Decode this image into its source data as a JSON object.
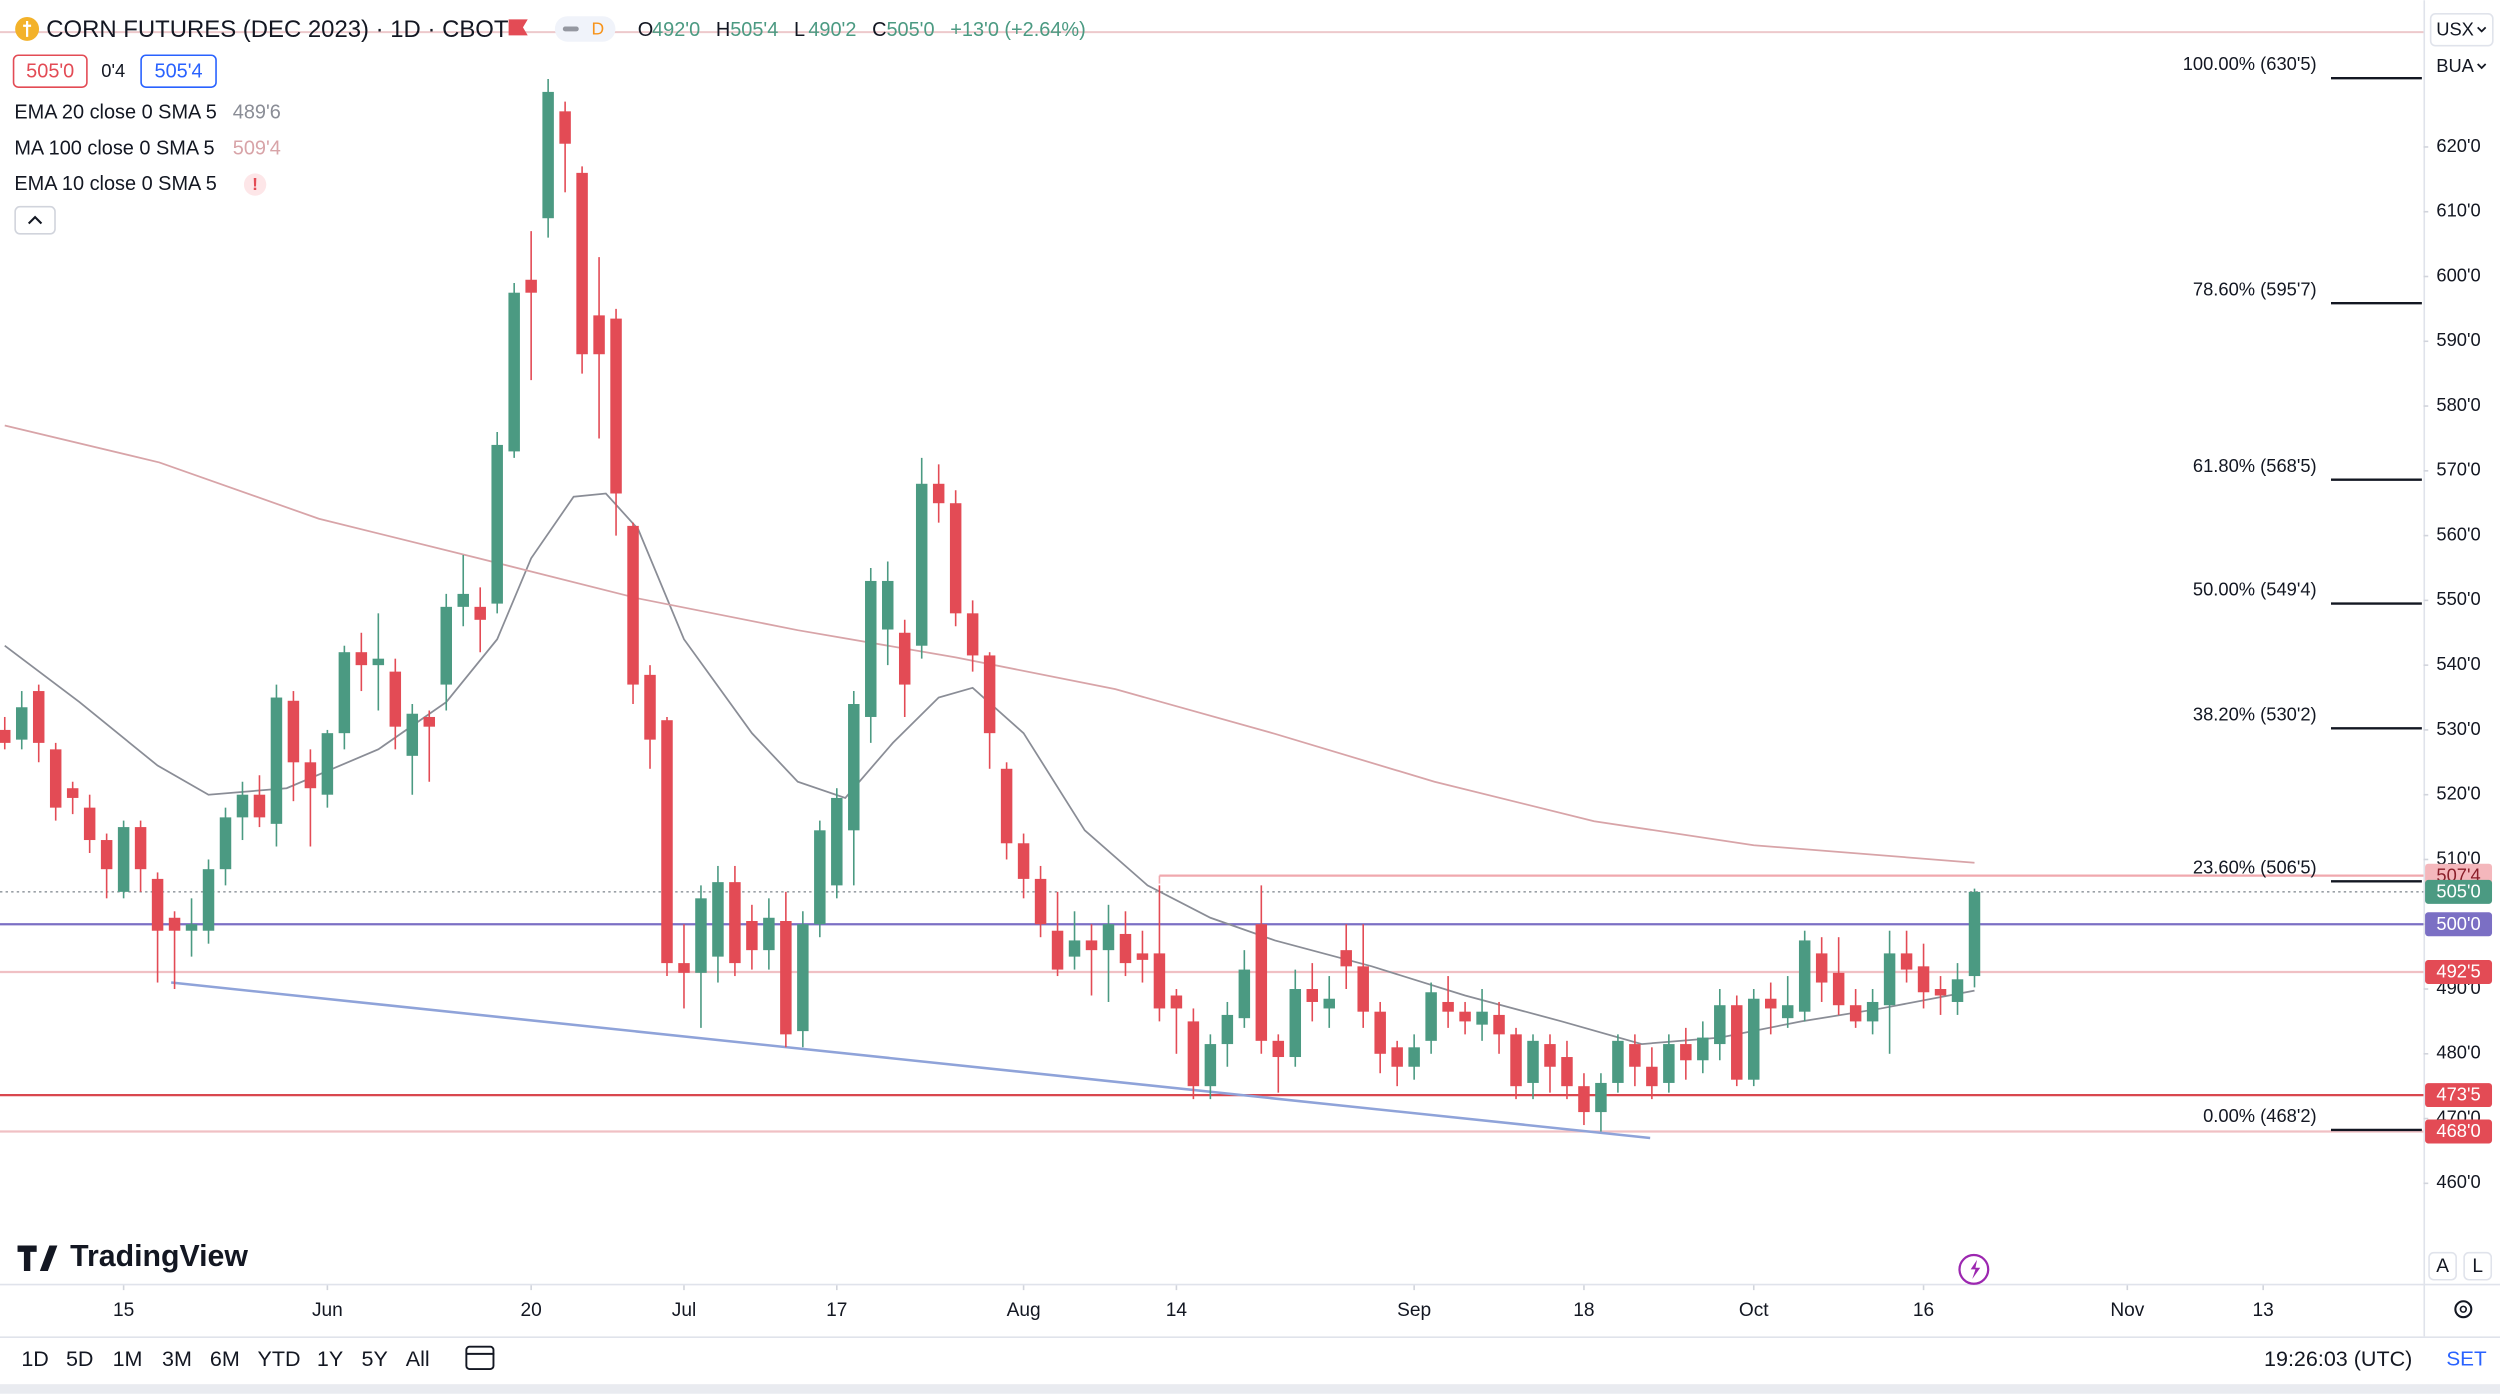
{
  "chart_data": {
    "type": "candlestick",
    "title": "CORN FUTURES (DEC 2023) · 1D · CBOT",
    "interval_badge": "D",
    "ohlc_header": [
      {
        "key": "O",
        "value": "492'0"
      },
      {
        "key": "H",
        "value": "505'4"
      },
      {
        "key": "L",
        "value": "490'2"
      },
      {
        "key": "C",
        "value": "505'0"
      }
    ],
    "change": "+13'0 (+2.64%)",
    "bid": "505'0",
    "spread": "0'4",
    "ask": "505'4",
    "currency": "USX",
    "price_source": "BUA",
    "up_color": "#4b9a82",
    "down_color": "#e34b55",
    "open": [
      530,
      528.5,
      536,
      527,
      521,
      518,
      513,
      505,
      515,
      507,
      501,
      499,
      499,
      508.5,
      516.5,
      520,
      515.5,
      534.5,
      525,
      520,
      529.5,
      542,
      540,
      539,
      526,
      532,
      537,
      549,
      549,
      549.5,
      573,
      599.5,
      609,
      625.5,
      616,
      594,
      593.5,
      561.5,
      538.5,
      531.5,
      494,
      492.5,
      495,
      506.5,
      500.5,
      496,
      500.5,
      483.5,
      500,
      506,
      514.5,
      532,
      545.5,
      545,
      543,
      568,
      565,
      548,
      541.5,
      524,
      512.5,
      507,
      499,
      495,
      497.5,
      496,
      498.5,
      495.5,
      495.5,
      489,
      485,
      475,
      481.5,
      485.5,
      500,
      482,
      479.5,
      490,
      487,
      496,
      493.5,
      486.5,
      481,
      478,
      482,
      488,
      486.5,
      484.5,
      486,
      483,
      475.5,
      481.5,
      479.5,
      475,
      471,
      475.5,
      481.5,
      478,
      475.5,
      481.5,
      479,
      481.5,
      487.5,
      476,
      488.5,
      485.5,
      486.5,
      495.5,
      492.5,
      487.5,
      485,
      487.5,
      495.5,
      493.5,
      490,
      488,
      492
    ],
    "high": [
      532,
      536,
      537,
      528,
      522,
      520,
      514,
      516,
      516,
      508,
      502,
      504,
      510,
      518,
      522,
      523,
      537,
      536,
      527,
      530,
      543,
      545,
      548,
      541,
      534,
      533,
      551,
      557,
      552,
      576,
      599,
      607,
      630.5,
      627,
      617,
      603,
      595,
      562,
      540,
      532,
      500,
      506,
      509,
      509,
      503,
      504,
      505,
      502,
      516,
      521,
      536,
      555,
      556,
      547,
      572,
      571,
      567,
      550,
      542,
      525,
      514,
      509,
      505,
      502,
      500,
      503,
      502,
      499,
      506,
      490,
      487,
      483,
      488,
      496,
      506,
      483,
      493,
      494,
      492,
      500,
      500,
      488,
      482,
      483,
      491,
      492,
      488,
      490,
      488,
      484,
      483,
      483,
      482,
      477,
      477,
      483,
      483,
      481,
      483,
      484,
      485,
      490,
      489,
      490,
      491,
      492,
      499,
      498,
      498,
      490,
      490,
      499,
      499,
      497,
      492,
      494,
      505.5
    ],
    "low": [
      527,
      527,
      525,
      516,
      517,
      511,
      504,
      504,
      505,
      491,
      490,
      495,
      497,
      506,
      513,
      515,
      512,
      519,
      512,
      518,
      527,
      536,
      533,
      527,
      520,
      522,
      533,
      546,
      542,
      548,
      572,
      584,
      606,
      613,
      585,
      575,
      560,
      534,
      524,
      492,
      487,
      484,
      491,
      492,
      493,
      493,
      481,
      481,
      498,
      504,
      506,
      528,
      540,
      532,
      541,
      562,
      546,
      539,
      524,
      510,
      504,
      498,
      492,
      493,
      489,
      488,
      492,
      491,
      485,
      480,
      473,
      473,
      478,
      484,
      480,
      474,
      478,
      485,
      484,
      490,
      484,
      477,
      475,
      476,
      480,
      484,
      483,
      482,
      480,
      473,
      473,
      474,
      473,
      469,
      468,
      474,
      475,
      473,
      474,
      476,
      477,
      479,
      475,
      475,
      483,
      484,
      485,
      488,
      486,
      484,
      483,
      480,
      491,
      487,
      486,
      486,
      490.25
    ],
    "close": [
      528,
      533.5,
      528,
      518,
      519.5,
      513,
      508.5,
      515,
      508.5,
      499,
      499,
      500,
      508.5,
      516.5,
      520,
      516.5,
      535,
      525,
      521,
      529.5,
      542,
      540,
      541,
      530.5,
      532.5,
      530.5,
      549,
      551,
      547,
      574,
      597.5,
      597.5,
      628.5,
      620.5,
      588,
      588,
      566.5,
      537,
      528.5,
      494,
      492.5,
      504,
      506.5,
      494,
      496,
      501,
      483,
      500,
      514.5,
      519.5,
      534,
      553,
      553,
      537,
      568,
      565,
      548,
      541.5,
      529.5,
      512.5,
      507,
      500,
      493,
      497.5,
      496,
      500,
      494,
      494.5,
      487,
      487,
      475,
      481.5,
      486,
      493,
      482,
      479.5,
      490,
      488,
      488.5,
      493.5,
      486.5,
      480,
      478,
      481,
      489.5,
      486.5,
      485,
      486.5,
      483,
      475,
      482,
      478,
      475,
      471,
      475.5,
      482,
      478,
      475,
      481.5,
      479,
      482.5,
      487.5,
      476,
      488.5,
      487,
      487.5,
      497.5,
      491,
      487.5,
      485,
      488,
      495.5,
      493,
      489.5,
      489,
      491.5,
      505
    ],
    "indicators": [
      {
        "name": "EMA 20 close 0 SMA 5",
        "last": "489'6",
        "color": "#8a8d96",
        "x": [
          0,
          4.4,
          9,
          12,
          16.6,
          22,
          26,
          29,
          31,
          33.5,
          35.4,
          37.3,
          40,
          44,
          46.7,
          49.5,
          52.3,
          55,
          57,
          60,
          63.6,
          67.3,
          71,
          74.8,
          80.5,
          86,
          91.7,
          96.4,
          101,
          105.8,
          110.5,
          116
        ],
        "values": [
          543,
          534.3,
          524.5,
          520,
          521,
          527,
          534.3,
          544,
          556.5,
          566,
          566.5,
          561,
          544,
          529.5,
          522,
          519.5,
          528,
          535,
          536.5,
          529.5,
          514.5,
          506,
          501,
          497.5,
          493.5,
          489,
          485,
          481.5,
          482.5,
          485,
          487,
          489.75
        ]
      },
      {
        "name": "MA 100 close 0 SMA 5",
        "last": "509'4",
        "color": "#d8a4a8",
        "x": [
          0,
          9.1,
          18.5,
          27.9,
          37.3,
          46.7,
          56,
          65.4,
          74.8,
          84.2,
          93.6,
          103,
          116
        ],
        "values": [
          577,
          571.3,
          562.6,
          556.5,
          550.3,
          545.4,
          541.2,
          536.3,
          529.4,
          522,
          515.9,
          512.2,
          509.5
        ]
      },
      {
        "name": "EMA 10 close 0 SMA 5",
        "last": "!",
        "color": "#e34b55"
      }
    ],
    "levels": [
      {
        "value": 507.5,
        "label": "507'4",
        "color": "#f0a8ae",
        "tag_color": "#f4b7bc",
        "tag_text_color": "#8a1f2a",
        "x_start": 68
      },
      {
        "value": 505,
        "label": "505'0",
        "color": "#9aa0a6",
        "tag_color": "#4b9a82",
        "tag_text_color": "#ffffff",
        "dotted": true
      },
      {
        "value": 500,
        "label": "500'0",
        "color": "#7b6fc4",
        "tag_color": "#7b6fc4",
        "tag_text_color": "#ffffff"
      },
      {
        "value": 492.625,
        "label": "492'5",
        "color": "#f0c0c4",
        "tag_color": "#e34b55",
        "tag_text_color": "#ffffff"
      },
      {
        "value": 473.625,
        "label": "473'5",
        "color": "#d9474f",
        "tag_color": "#e34b55",
        "tag_text_color": "#ffffff"
      },
      {
        "value": 468,
        "label": "468'0",
        "color": "#f0c0c4",
        "tag_color": "#e34b55",
        "tag_text_color": "#ffffff"
      }
    ],
    "trendline": {
      "x": [
        9.8,
        96.9
      ],
      "values": [
        491,
        467
      ],
      "color": "#8fa3d9"
    },
    "fib": [
      {
        "value": 630.625,
        "label": "100.00% (630'5)"
      },
      {
        "value": 595.875,
        "label": "78.60% (595'7)"
      },
      {
        "value": 568.625,
        "label": "61.80% (568'5)"
      },
      {
        "value": 549.5,
        "label": "50.00% (549'4)"
      },
      {
        "value": 530.25,
        "label": "38.20% (530'2)"
      },
      {
        "value": 506.625,
        "label": "23.60% (506'5)"
      },
      {
        "value": 468.25,
        "label": "0.00% (468'2)"
      }
    ],
    "xlim": [
      -0.28,
      142.44
    ],
    "ylim": [
      444.5,
      642.65
    ],
    "xticks": [
      {
        "value": 7,
        "label": "15"
      },
      {
        "value": 19,
        "label": "Jun"
      },
      {
        "value": 31,
        "label": "20"
      },
      {
        "value": 40,
        "label": "Jul"
      },
      {
        "value": 49,
        "label": "17"
      },
      {
        "value": 60,
        "label": "Aug"
      },
      {
        "value": 69,
        "label": "14"
      },
      {
        "value": 83,
        "label": "Sep"
      },
      {
        "value": 93,
        "label": "18"
      },
      {
        "value": 103,
        "label": "Oct"
      },
      {
        "value": 113,
        "label": "16"
      },
      {
        "value": 125,
        "label": "Nov"
      },
      {
        "value": 133,
        "label": "13"
      }
    ],
    "yticks": [
      {
        "value": 460,
        "label": "460'0"
      },
      {
        "value": 470,
        "label": "470'0"
      },
      {
        "value": 480,
        "label": "480'0"
      },
      {
        "value": 490,
        "label": "490'0"
      },
      {
        "value": 500,
        "label": "500'0"
      },
      {
        "value": 510,
        "label": "510'0"
      },
      {
        "value": 520,
        "label": "520'0"
      },
      {
        "value": 530,
        "label": "530'0"
      },
      {
        "value": 540,
        "label": "540'0"
      },
      {
        "value": 550,
        "label": "550'0"
      },
      {
        "value": 560,
        "label": "560'0"
      },
      {
        "value": 570,
        "label": "570'0"
      },
      {
        "value": 580,
        "label": "580'0"
      },
      {
        "value": 590,
        "label": "590'0"
      },
      {
        "value": 600,
        "label": "600'0"
      },
      {
        "value": 610,
        "label": "610'0"
      },
      {
        "value": 620,
        "label": "620'0"
      }
    ],
    "brand": "TradingView",
    "scale_buttons": [
      "A",
      "L"
    ]
  },
  "toolbar": {
    "ranges": [
      "1D",
      "5D",
      "1M",
      "3M",
      "6M",
      "YTD",
      "1Y",
      "5Y",
      "All"
    ],
    "time": "19:26:03 (UTC)",
    "settings": "SET"
  }
}
